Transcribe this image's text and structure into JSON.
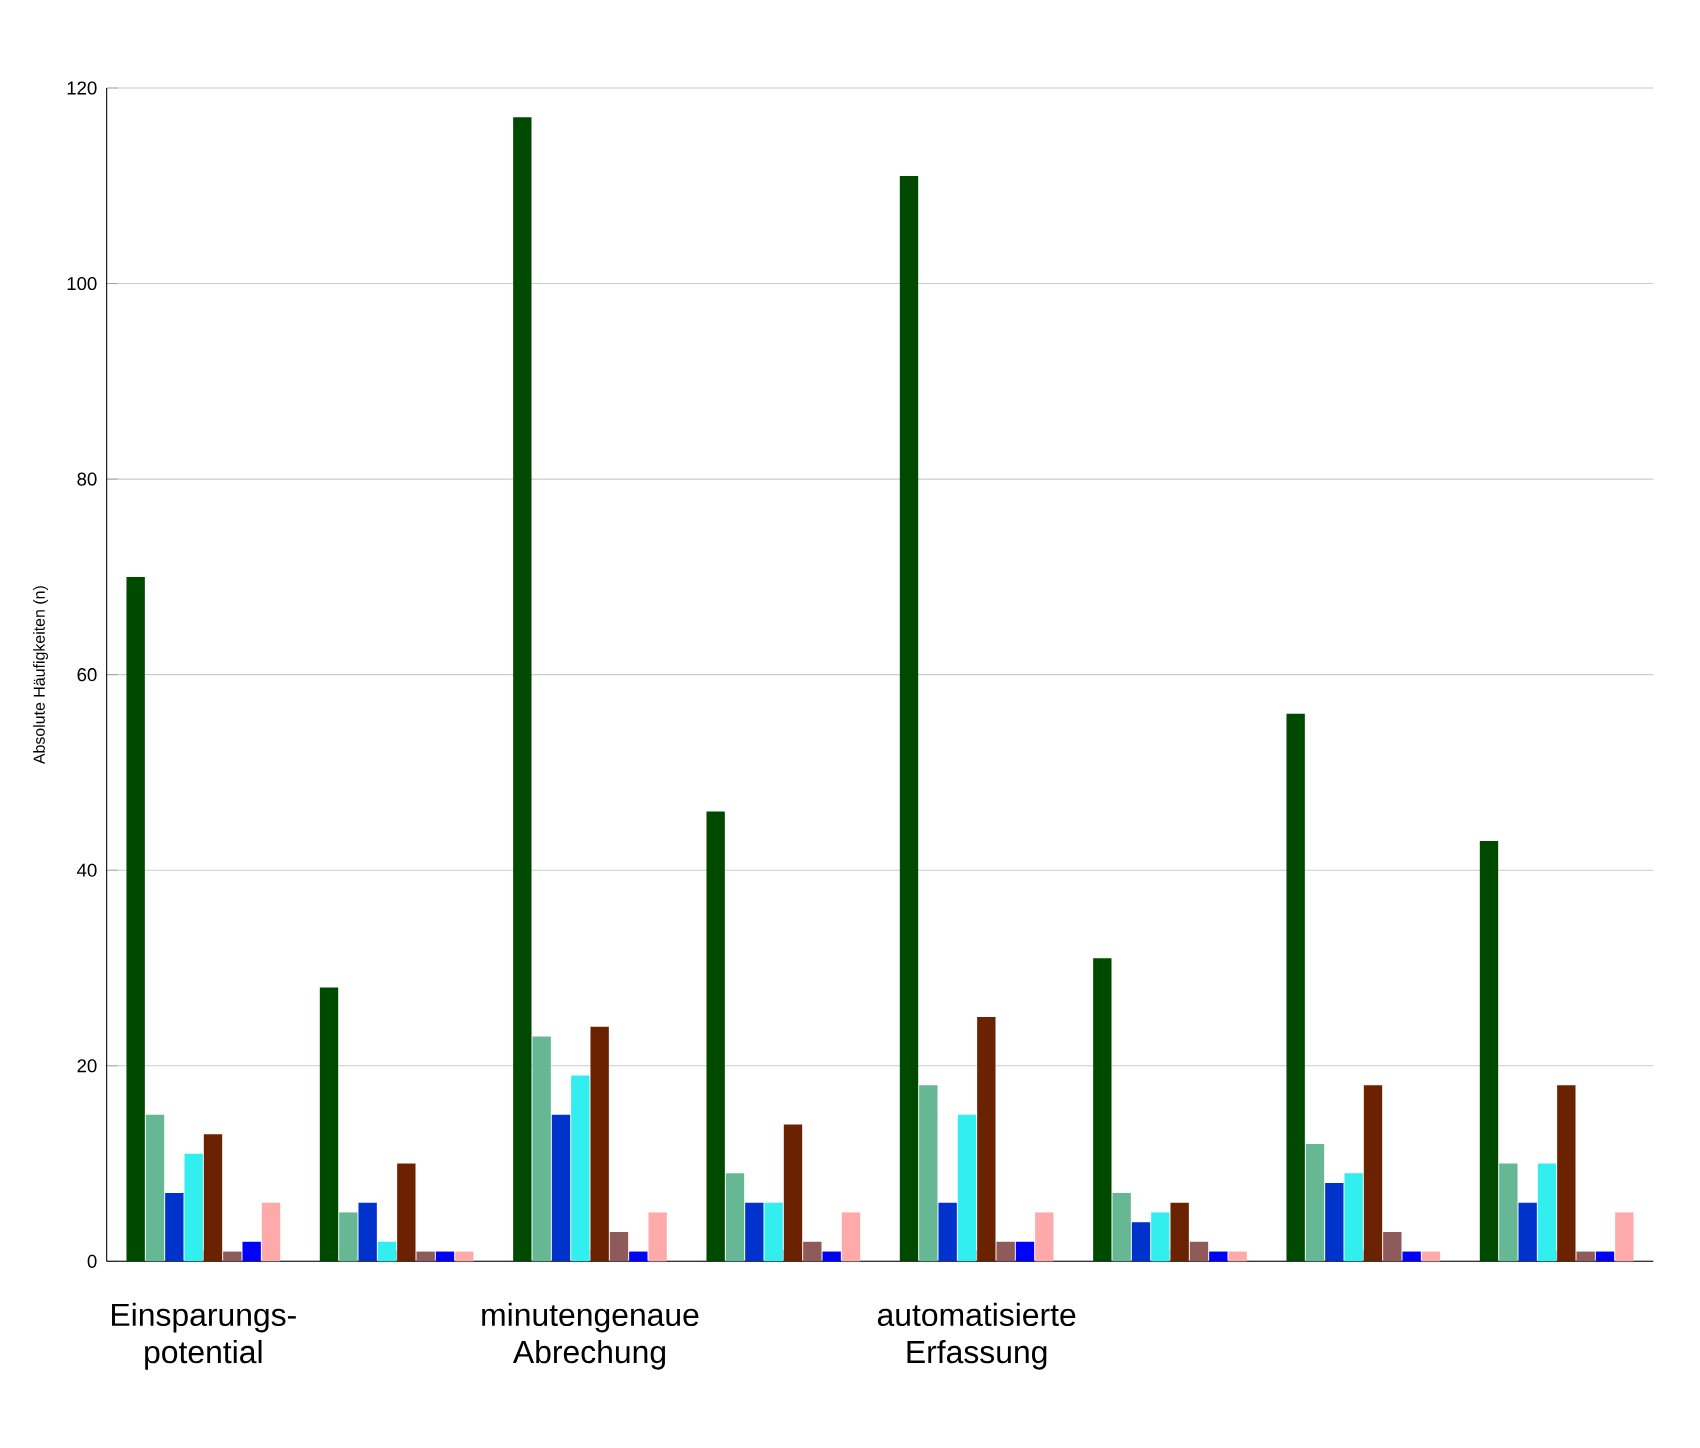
{
  "chart_data": {
    "type": "bar",
    "ylabel": "Absolute Häufigkeiten (n)",
    "categories": [
      "Einsparungs-potential",
      null,
      "minutengenaue Abrechung",
      null,
      "automatisierte Erfassung",
      null,
      null,
      null
    ],
    "series": [
      {
        "color": "#004a00",
        "values": [
          70,
          28,
          117,
          46,
          111,
          31,
          56,
          43
        ]
      },
      {
        "color": "#66b894",
        "values": [
          15,
          5,
          23,
          9,
          18,
          7,
          12,
          10
        ]
      },
      {
        "color": "#0033cc",
        "values": [
          7,
          6,
          15,
          6,
          6,
          4,
          8,
          6
        ]
      },
      {
        "color": "#33eeee",
        "values": [
          11,
          2,
          19,
          6,
          15,
          5,
          9,
          10
        ]
      },
      {
        "color": "#6b2200",
        "values": [
          13,
          10,
          24,
          14,
          25,
          6,
          18,
          18
        ]
      },
      {
        "color": "#8f5a5a",
        "values": [
          1,
          1,
          3,
          2,
          2,
          2,
          3,
          1
        ]
      },
      {
        "color": "#0000ff",
        "values": [
          2,
          1,
          1,
          1,
          2,
          1,
          1,
          1
        ]
      },
      {
        "color": "#ffaaaa",
        "values": [
          6,
          1,
          5,
          5,
          5,
          1,
          1,
          5
        ]
      }
    ],
    "ylim": [
      0,
      120
    ],
    "yticks": [
      0,
      20,
      40,
      60,
      80,
      100,
      120
    ],
    "grid": "y"
  }
}
